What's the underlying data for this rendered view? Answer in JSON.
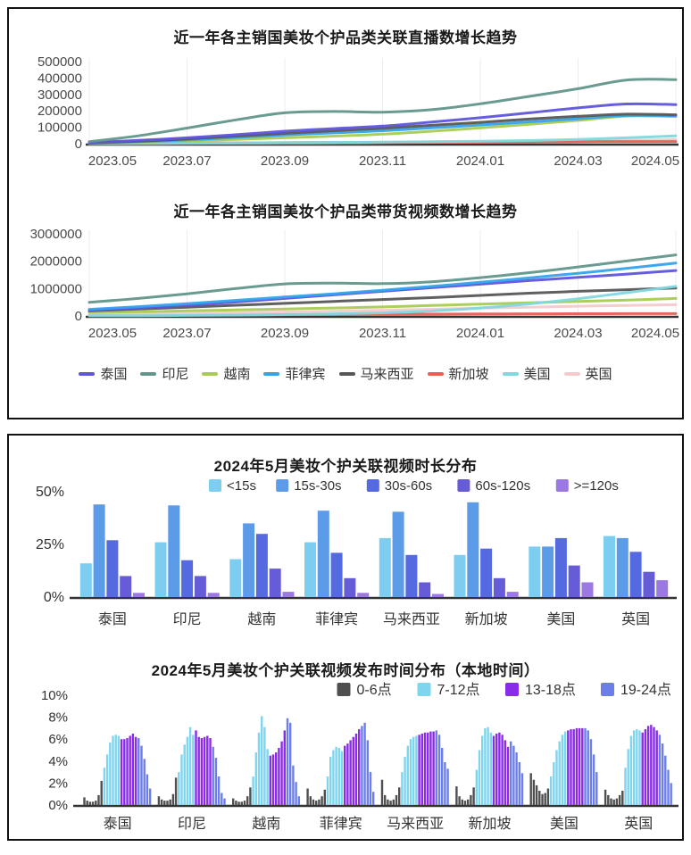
{
  "chart_data": [
    {
      "id": "live-stream-growth",
      "type": "line",
      "title": "近一年各主销国美妆个护品类关联直播数增长趋势",
      "x": [
        "2023.05",
        "2023.06",
        "2023.07",
        "2023.08",
        "2023.09",
        "2023.10",
        "2023.11",
        "2023.12",
        "2024.01",
        "2024.02",
        "2024.03",
        "2024.04",
        "2024.05"
      ],
      "x_tick_labels": [
        "2023.05",
        "2023.07",
        "2023.09",
        "2023.11",
        "2024.01",
        "2024.03",
        "2024.05"
      ],
      "x_tick_indices": [
        0,
        2,
        4,
        6,
        8,
        10,
        12
      ],
      "ylim": [
        0,
        500000
      ],
      "yticks": [
        0,
        100000,
        200000,
        300000,
        400000,
        500000
      ],
      "grid": "vertical-faint",
      "legend_position": "shared-bottom",
      "draw_order": [
        7,
        5,
        6,
        2,
        3,
        4,
        0,
        1
      ],
      "series": [
        {
          "name": "泰国",
          "color": "#5F54DE",
          "values": [
            8000,
            20000,
            36000,
            55000,
            76000,
            92000,
            107000,
            132000,
            158000,
            188000,
            218000,
            242000,
            238000
          ]
        },
        {
          "name": "印尼",
          "color": "#62968B",
          "values": [
            12000,
            48000,
            95000,
            145000,
            188000,
            196000,
            192000,
            207000,
            243000,
            288000,
            335000,
            388000,
            390000
          ]
        },
        {
          "name": "越南",
          "color": "#A8CC52",
          "values": [
            3000,
            9000,
            16000,
            26000,
            36000,
            46000,
            58000,
            76000,
            96000,
            118000,
            142000,
            168000,
            165000
          ]
        },
        {
          "name": "菲律宾",
          "color": "#33A3EC",
          "values": [
            4000,
            12000,
            23000,
            38000,
            53000,
            66000,
            79000,
            96000,
            114000,
            133000,
            152000,
            172000,
            170000
          ]
        },
        {
          "name": "马来西亚",
          "color": "#575757",
          "values": [
            5000,
            15000,
            29000,
            46000,
            63000,
            79000,
            94000,
            112000,
            130000,
            150000,
            167000,
            180000,
            176000
          ]
        },
        {
          "name": "新加坡",
          "color": "#E4614F",
          "values": [
            800,
            2000,
            3500,
            5000,
            6000,
            7000,
            8000,
            9000,
            10000,
            11000,
            12000,
            13000,
            13000
          ]
        },
        {
          "name": "美国",
          "color": "#80D8DE",
          "values": [
            600,
            1500,
            3000,
            4500,
            6000,
            7500,
            9500,
            12000,
            15000,
            19000,
            26000,
            36000,
            48000
          ]
        },
        {
          "name": "英国",
          "color": "#F6C9CD",
          "values": [
            400,
            1000,
            2000,
            3000,
            4000,
            5000,
            6500,
            8000,
            10000,
            12500,
            16000,
            20000,
            25000
          ]
        }
      ]
    },
    {
      "id": "shopping-video-growth",
      "type": "line",
      "title": "近一年各主销国美妆个护品类带货视频数增长趋势",
      "x": [
        "2023.05",
        "2023.06",
        "2023.07",
        "2023.08",
        "2023.09",
        "2023.10",
        "2023.11",
        "2023.12",
        "2024.01",
        "2024.02",
        "2024.03",
        "2024.04",
        "2024.05"
      ],
      "x_tick_labels": [
        "2023.05",
        "2023.07",
        "2023.09",
        "2023.11",
        "2024.01",
        "2024.03",
        "2024.05"
      ],
      "x_tick_indices": [
        0,
        2,
        4,
        6,
        8,
        10,
        12
      ],
      "ylim": [
        0,
        3000000
      ],
      "yticks": [
        0,
        1000000,
        2000000,
        3000000
      ],
      "grid": "vertical-faint",
      "legend_position": "shared-bottom",
      "draw_order": [
        5,
        7,
        2,
        4,
        6,
        0,
        3,
        1
      ],
      "series": [
        {
          "name": "泰国",
          "color": "#5F54DE",
          "values": [
            210000,
            290000,
            390000,
            510000,
            640000,
            770000,
            900000,
            1030000,
            1160000,
            1290000,
            1410000,
            1530000,
            1660000
          ]
        },
        {
          "name": "印尼",
          "color": "#62968B",
          "values": [
            500000,
            640000,
            810000,
            1000000,
            1170000,
            1200000,
            1180000,
            1250000,
            1400000,
            1580000,
            1790000,
            2010000,
            2230000
          ]
        },
        {
          "name": "越南",
          "color": "#A8CC52",
          "values": [
            130000,
            155000,
            185000,
            220000,
            255000,
            290000,
            330000,
            380000,
            430000,
            480000,
            530000,
            580000,
            640000
          ]
        },
        {
          "name": "菲律宾",
          "color": "#33A3EC",
          "values": [
            240000,
            340000,
            450000,
            570000,
            690000,
            810000,
            940000,
            1080000,
            1230000,
            1390000,
            1560000,
            1740000,
            1930000
          ]
        },
        {
          "name": "马来西亚",
          "color": "#575757",
          "values": [
            190000,
            250000,
            320000,
            390000,
            460000,
            530000,
            600000,
            670000,
            750000,
            830000,
            900000,
            960000,
            1020000
          ]
        },
        {
          "name": "新加坡",
          "color": "#E4614F",
          "values": [
            20000,
            26000,
            33000,
            40000,
            47000,
            54000,
            60000,
            66000,
            72000,
            77000,
            81000,
            84000,
            86000
          ]
        },
        {
          "name": "美国",
          "color": "#80D8DE",
          "values": [
            5000,
            10000,
            18000,
            30000,
            48000,
            75000,
            115000,
            180000,
            290000,
            440000,
            630000,
            850000,
            1080000
          ]
        },
        {
          "name": "英国",
          "color": "#F6C9CD",
          "values": [
            50000,
            68000,
            90000,
            115000,
            145000,
            175000,
            210000,
            245000,
            285000,
            320000,
            355000,
            385000,
            410000
          ]
        }
      ]
    },
    {
      "id": "video-duration-distribution",
      "type": "bar",
      "title": "2024年5月美妆个护关联视频时长分布",
      "categories": [
        "泰国",
        "印尼",
        "越南",
        "菲律宾",
        "马来西亚",
        "新加坡",
        "美国",
        "英国"
      ],
      "ylim": [
        0,
        50
      ],
      "yticks": [
        0,
        25,
        50
      ],
      "ytick_labels": [
        "0%",
        "25%",
        "50%"
      ],
      "legend_position": "top-right",
      "series": [
        {
          "name": "<15s",
          "color": "#7CCDEF",
          "values": [
            16,
            26,
            18,
            26,
            28,
            20,
            24,
            29
          ]
        },
        {
          "name": "15s-30s",
          "color": "#5C9BE8",
          "values": [
            44,
            43.5,
            35,
            41,
            40.5,
            45,
            24,
            28
          ]
        },
        {
          "name": "30s-60s",
          "color": "#5569E0",
          "values": [
            27,
            17.5,
            30,
            21,
            20,
            23,
            28,
            21.5
          ]
        },
        {
          "name": "60s-120s",
          "color": "#675CD8",
          "values": [
            10,
            10,
            13.5,
            9,
            7,
            9,
            15,
            12
          ]
        },
        {
          "name": ">=120s",
          "color": "#9C79E2",
          "values": [
            2,
            2,
            2.5,
            2,
            1.5,
            2.5,
            7,
            8
          ]
        }
      ]
    },
    {
      "id": "video-publish-time-distribution",
      "type": "bar",
      "title": "2024年5月美妆个护关联视频发布时间分布（本地时间）",
      "categories": [
        "泰国",
        "印尼",
        "越南",
        "菲律宾",
        "马来西亚",
        "新加坡",
        "美国",
        "英国"
      ],
      "ylim": [
        0,
        10
      ],
      "yticks": [
        0,
        2,
        4,
        6,
        8,
        10
      ],
      "ytick_labels": [
        "0%",
        "2%",
        "4%",
        "6%",
        "8%",
        "10%"
      ],
      "legend_position": "top-right",
      "hour_segments": [
        {
          "name": "0-6点",
          "color": "#4F4F4F",
          "hours": [
            0,
            6
          ]
        },
        {
          "name": "7-12点",
          "color": "#7FD4EE",
          "hours": [
            7,
            12
          ]
        },
        {
          "name": "13-18点",
          "color": "#8A2BE8",
          "hours": [
            13,
            18
          ]
        },
        {
          "name": "19-24点",
          "color": "#6C7EE8",
          "hours": [
            19,
            23
          ]
        }
      ],
      "hourly_values": {
        "泰国": [
          0.7,
          0.4,
          0.3,
          0.3,
          0.4,
          0.9,
          2.2,
          3.4,
          4.6,
          5.7,
          6.3,
          6.4,
          6.3,
          6.0,
          6.0,
          6.1,
          6.3,
          6.5,
          6.2,
          6.1,
          5.4,
          4.2,
          2.8,
          1.5
        ],
        "印尼": [
          0.8,
          0.5,
          0.4,
          0.4,
          0.5,
          1.0,
          2.5,
          3.0,
          4.6,
          5.5,
          6.2,
          7.1,
          6.4,
          6.8,
          6.2,
          6.1,
          6.2,
          6.3,
          6.1,
          5.3,
          4.3,
          2.6,
          1.1,
          0.6
        ],
        "越南": [
          0.6,
          0.4,
          0.3,
          0.3,
          0.4,
          0.8,
          1.6,
          2.6,
          4.8,
          6.6,
          8.1,
          7.1,
          5.1,
          4.5,
          4.6,
          4.8,
          5.2,
          5.8,
          6.8,
          7.9,
          7.5,
          3.6,
          2.1,
          0.8
        ],
        "菲律宾": [
          1.5,
          0.8,
          0.5,
          0.4,
          0.5,
          0.8,
          1.4,
          2.6,
          4.4,
          5.0,
          5.3,
          5.2,
          4.9,
          5.4,
          5.6,
          5.9,
          6.2,
          6.5,
          6.9,
          7.2,
          7.5,
          5.9,
          3.0,
          1.2
        ],
        "马来西亚": [
          2.3,
          0.9,
          0.5,
          0.4,
          0.5,
          0.9,
          1.6,
          3.0,
          4.4,
          5.4,
          6.0,
          6.2,
          6.3,
          6.4,
          6.5,
          6.6,
          6.6,
          6.7,
          6.7,
          6.8,
          6.4,
          5.2,
          3.9,
          3.3
        ],
        "新加坡": [
          1.7,
          0.8,
          0.5,
          0.4,
          0.5,
          0.9,
          1.6,
          3.2,
          5.0,
          6.3,
          7.0,
          7.1,
          6.6,
          6.3,
          6.5,
          6.6,
          6.4,
          5.9,
          5.3,
          5.8,
          5.4,
          4.8,
          3.9,
          2.9
        ],
        "美国": [
          2.9,
          2.3,
          1.8,
          1.3,
          1.0,
          1.1,
          1.5,
          2.6,
          3.9,
          5.0,
          5.8,
          6.4,
          6.7,
          6.8,
          6.9,
          6.9,
          7.0,
          7.0,
          7.0,
          7.0,
          6.8,
          6.0,
          4.6,
          3.0
        ],
        "英国": [
          1.4,
          0.9,
          0.6,
          0.5,
          0.6,
          0.9,
          1.3,
          3.4,
          5.1,
          6.3,
          6.8,
          6.9,
          6.8,
          6.6,
          6.9,
          7.2,
          7.3,
          7.1,
          6.8,
          6.4,
          5.6,
          4.5,
          3.2,
          2.0
        ]
      }
    }
  ],
  "styles": {
    "axis_text_color": "#4a4a4a",
    "category_text_color": "#333333",
    "axis_line_color": "#333333",
    "grid_color": "#ededed"
  }
}
